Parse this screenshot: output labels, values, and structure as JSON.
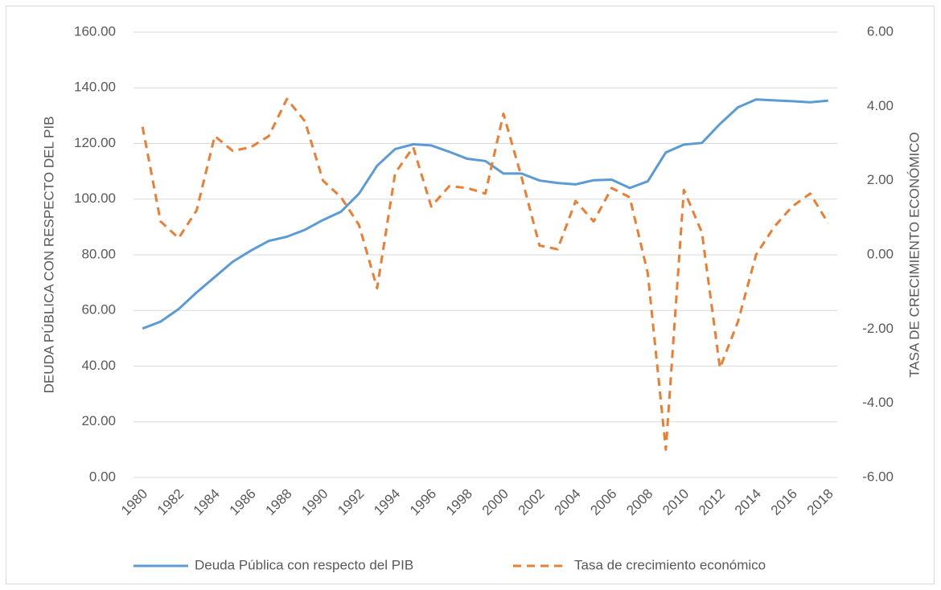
{
  "chart_data": {
    "type": "line",
    "categories": [
      "1980",
      null,
      "1982",
      null,
      "1984",
      null,
      "1986",
      null,
      "1988",
      null,
      "1990",
      null,
      "1992",
      null,
      "1994",
      null,
      "1996",
      null,
      "1998",
      null,
      "2000",
      null,
      "2002",
      null,
      "2004",
      null,
      "2006",
      null,
      "2008",
      null,
      "2010",
      null,
      "2012",
      null,
      "2014",
      null,
      "2016",
      null,
      "2018"
    ],
    "y_label": "DEUDA PÚBLICA CON RESPECTO DEL PIB",
    "y2_label": "TASA DE CRECIMIENTO ECONÓMICO",
    "ylim": [
      0,
      160
    ],
    "yticks": [
      {
        "value": 0,
        "label": "0.00"
      },
      {
        "value": 20,
        "label": "20.00"
      },
      {
        "value": 40,
        "label": "40.00"
      },
      {
        "value": 60,
        "label": "60.00"
      },
      {
        "value": 80,
        "label": "80.00"
      },
      {
        "value": 100,
        "label": "100.00"
      },
      {
        "value": 120,
        "label": "120.00"
      },
      {
        "value": 140,
        "label": "140.00"
      },
      {
        "value": 160,
        "label": "160.00"
      }
    ],
    "y2lim": [
      -6,
      6
    ],
    "y2ticks": [
      {
        "value": -6,
        "label": "-6.00"
      },
      {
        "value": -4,
        "label": "-4.00"
      },
      {
        "value": -2,
        "label": "-2.00"
      },
      {
        "value": 0,
        "label": "0.00"
      },
      {
        "value": 2,
        "label": "2.00"
      },
      {
        "value": 4,
        "label": "4.00"
      },
      {
        "value": 6,
        "label": "6.00"
      }
    ],
    "grid": true,
    "legend": "bottom",
    "series": [
      {
        "name": "Deuda Pública con respecto del PIB",
        "color": "#5b9bd5",
        "dash": false,
        "values": [
          53.5,
          56,
          60.5,
          66.5,
          72,
          77.5,
          81.5,
          85,
          86.5,
          89,
          92.5,
          95.5,
          102,
          112,
          118,
          119.7,
          119.3,
          117,
          114.5,
          113.7,
          109.2,
          109.2,
          106.7,
          105.8,
          105.3,
          106.8,
          107,
          104,
          106.4,
          116.8,
          119.6,
          120.2,
          127,
          133,
          135.8,
          135.5,
          135.2,
          134.8,
          135.4
        ]
      },
      {
        "name": "Tasa de crecimiento económico",
        "color": "#ed7d31",
        "dash": true,
        "axis": "y2",
        "values": [
          3.45,
          0.9,
          0.45,
          1.2,
          3.2,
          2.8,
          2.9,
          3.2,
          4.2,
          3.6,
          2.0,
          1.55,
          0.8,
          -0.9,
          2.2,
          2.9,
          1.3,
          1.85,
          1.8,
          1.65,
          3.8,
          2.1,
          0.25,
          0.15,
          1.45,
          0.9,
          1.8,
          1.55,
          -0.5,
          -5.25,
          1.75,
          0.6,
          -3.05,
          -1.8,
          0,
          0.75,
          1.3,
          1.65,
          0.85
        ]
      }
    ]
  }
}
